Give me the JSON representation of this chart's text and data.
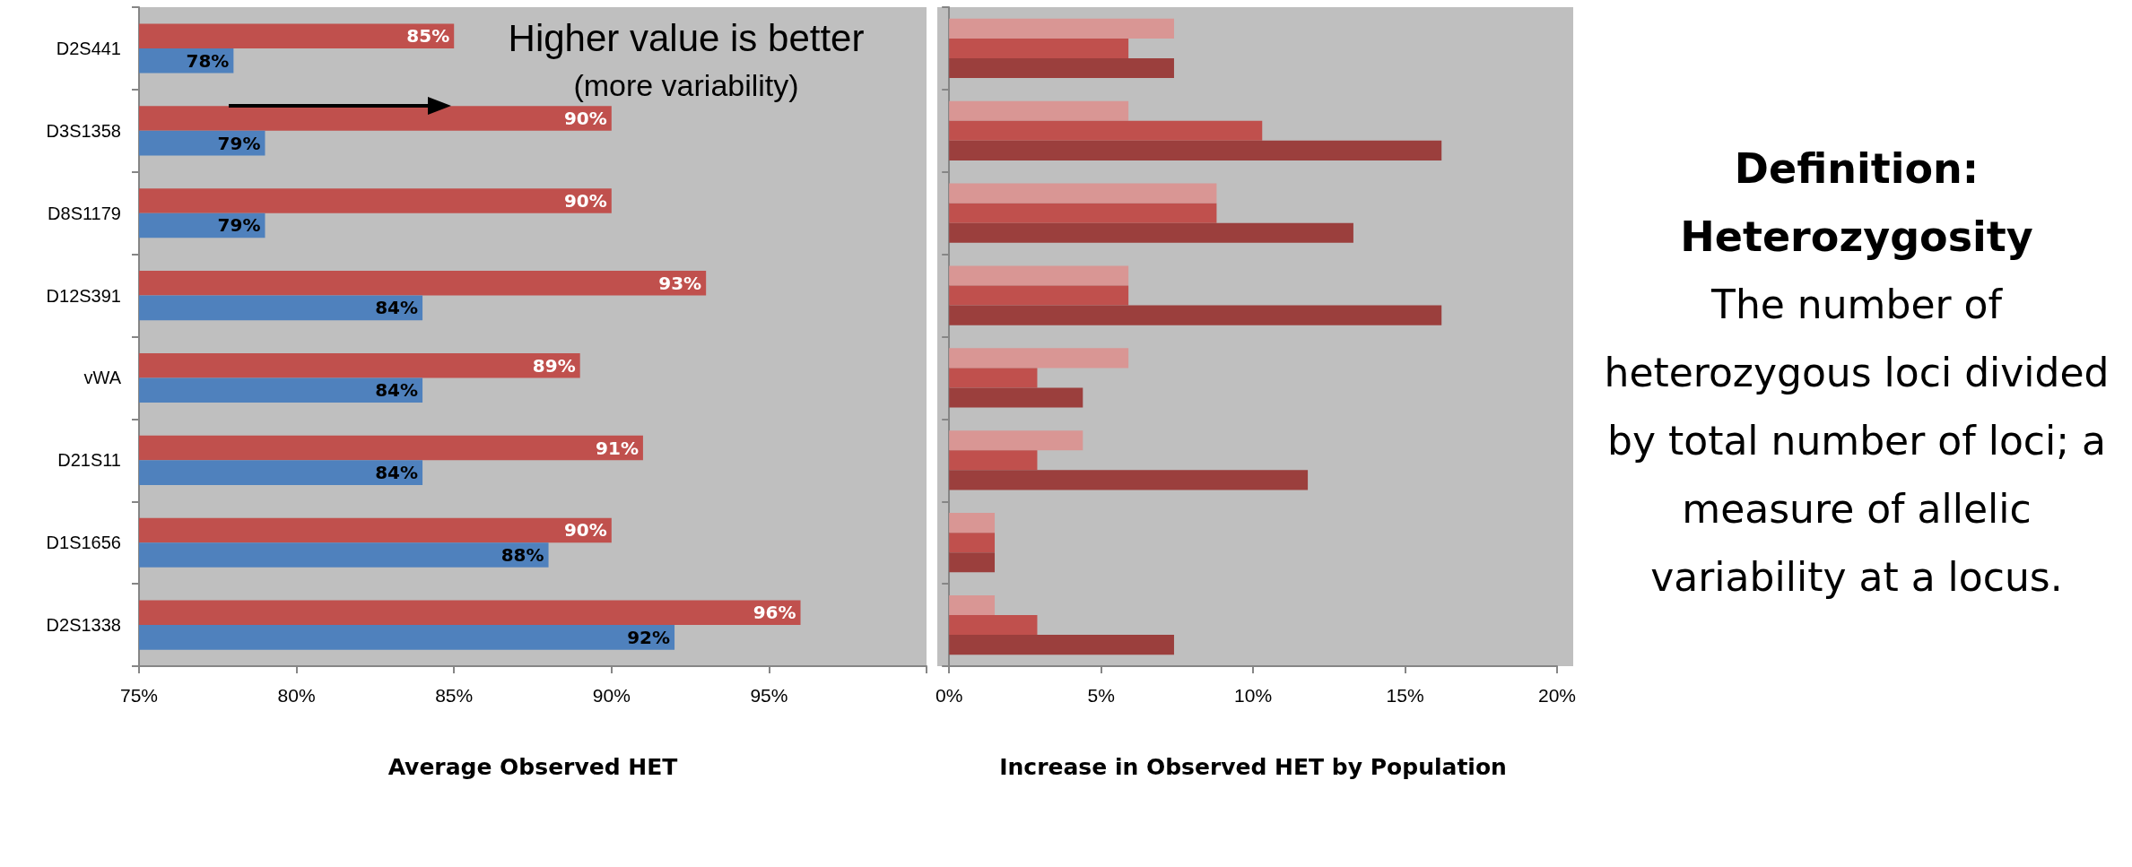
{
  "chart_data": [
    {
      "type": "bar",
      "orientation": "horizontal",
      "xlabel": "Average Observed HET",
      "categories": [
        "D2S441",
        "D3S1358",
        "D8S1179",
        "D12S391",
        "vWA",
        "D21S11",
        "D1S1656",
        "D2S1338"
      ],
      "series": [
        {
          "color": "#c0504d",
          "values": [
            85,
            90,
            90,
            93,
            89,
            91,
            90,
            96
          ],
          "value_labels": [
            "85%",
            "90%",
            "90%",
            "93%",
            "89%",
            "91%",
            "90%",
            "96%"
          ]
        },
        {
          "color": "#4f81bd",
          "values": [
            78,
            79,
            79,
            84,
            84,
            84,
            88,
            92
          ],
          "value_labels": [
            "78%",
            "79%",
            "79%",
            "84%",
            "84%",
            "84%",
            "88%",
            "92%"
          ]
        }
      ],
      "xlim": [
        75,
        100
      ],
      "xticks": [
        {
          "value": 75,
          "label": "75%"
        },
        {
          "value": 80,
          "label": "80%"
        },
        {
          "value": 85,
          "label": "85%"
        },
        {
          "value": 90,
          "label": "90%"
        },
        {
          "value": 95,
          "label": "95%"
        },
        {
          "value": 100,
          "label": null
        }
      ],
      "grid": false,
      "annotations": [
        "Higher value is better",
        "(more variability)"
      ]
    },
    {
      "type": "bar",
      "orientation": "horizontal",
      "xlabel": "Increase in Observed HET by Population",
      "categories": [
        null,
        null,
        null,
        null,
        null,
        null,
        null,
        null
      ],
      "series": [
        {
          "color": "#d99694",
          "values": [
            7.4,
            5.9,
            8.8,
            5.9,
            5.9,
            4.4,
            1.5,
            1.5
          ]
        },
        {
          "color": "#c0504d",
          "values": [
            5.9,
            10.3,
            8.8,
            5.9,
            2.9,
            2.9,
            1.5,
            2.9
          ]
        },
        {
          "color": "#9b3f3d",
          "values": [
            7.4,
            16.2,
            13.3,
            16.2,
            4.4,
            11.8,
            1.5,
            7.4
          ]
        }
      ],
      "xlim": [
        0,
        20
      ],
      "xticks": [
        {
          "value": 0,
          "label": "0%"
        },
        {
          "value": 5,
          "label": "5%"
        },
        {
          "value": 10,
          "label": "10%"
        },
        {
          "value": 15,
          "label": "15%"
        },
        {
          "value": 20,
          "label": "20%"
        }
      ],
      "grid": false,
      "tick_labels": "x"
    },
    {
      "type": "other",
      "title": "Definition: Heterozygosity",
      "annotations": [
        "The number of heterozygous loci divided by total number of loci; a measure of allelic variability at a locus."
      ]
    }
  ]
}
